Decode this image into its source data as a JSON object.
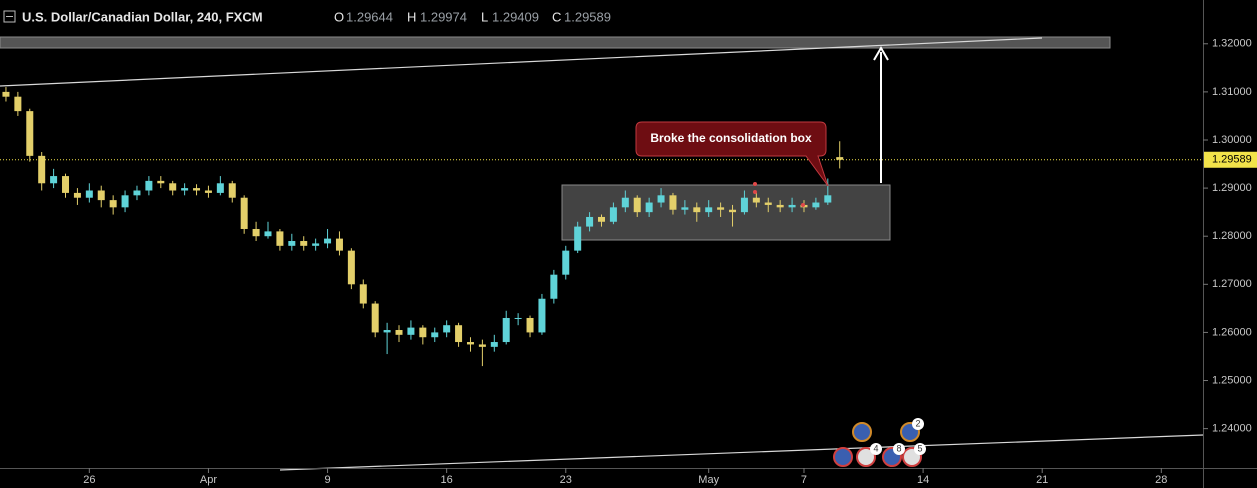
{
  "chart_data": {
    "type": "candlestick",
    "title": "U.S. Dollar/Canadian Dollar, 240, FXCM",
    "ohlc_labels": [
      "O",
      "H",
      "L",
      "C"
    ],
    "annotation": "Broke the consolidation box",
    "event_badges": [
      "2",
      "4",
      "8",
      "5"
    ],
    "up_color": "#5fd3d8",
    "down_color": "#e3cf6a",
    "last_price_color": "#f2e34a",
    "grid": false,
    "ylim": [
      1.2314,
      1.3291
    ],
    "yticks": [
      {
        "value": 1.24,
        "label": "1.24000"
      },
      {
        "value": 1.25,
        "label": "1.25000"
      },
      {
        "value": 1.26,
        "label": "1.26000"
      },
      {
        "value": 1.27,
        "label": "1.27000"
      },
      {
        "value": 1.28,
        "label": "1.28000"
      },
      {
        "value": 1.29,
        "label": "1.29000"
      },
      {
        "value": 1.3,
        "label": "1.30000"
      },
      {
        "value": 1.31,
        "label": "1.31000"
      },
      {
        "value": 1.32,
        "label": "1.32000"
      }
    ],
    "categories": [
      null,
      null,
      null,
      null,
      null,
      null,
      null,
      "26",
      null,
      null,
      null,
      null,
      null,
      null,
      null,
      null,
      null,
      "Apr",
      null,
      null,
      null,
      null,
      null,
      null,
      null,
      null,
      null,
      "9",
      null,
      null,
      null,
      null,
      null,
      null,
      null,
      null,
      null,
      "16",
      null,
      null,
      null,
      null,
      null,
      null,
      null,
      null,
      null,
      "23",
      null,
      null,
      null,
      null,
      null,
      null,
      null,
      null,
      null,
      null,
      null,
      "May",
      null,
      null,
      null,
      null,
      null,
      null,
      null,
      "7",
      null,
      null,
      null,
      null,
      null,
      null,
      null,
      null,
      null,
      "14",
      null,
      null,
      null,
      null,
      null,
      null,
      null,
      null,
      null,
      "21",
      null,
      null,
      null,
      null,
      null,
      null,
      null,
      null,
      null,
      "28",
      null,
      null,
      null
    ],
    "ohlc": [
      [
        1.31,
        1.311,
        1.308,
        1.309
      ],
      [
        1.309,
        1.31,
        1.305,
        1.306
      ],
      [
        1.306,
        1.3065,
        1.2955,
        1.2967
      ],
      [
        1.2967,
        1.2975,
        1.2895,
        1.291
      ],
      [
        1.291,
        1.294,
        1.29,
        1.2925
      ],
      [
        1.2925,
        1.293,
        1.288,
        1.289
      ],
      [
        1.289,
        1.29,
        1.2865,
        1.288
      ],
      [
        1.288,
        1.291,
        1.287,
        1.2895
      ],
      [
        1.2895,
        1.2905,
        1.286,
        1.2875
      ],
      [
        1.2875,
        1.2885,
        1.2845,
        1.286
      ],
      [
        1.286,
        1.2895,
        1.285,
        1.2885
      ],
      [
        1.2885,
        1.2905,
        1.2875,
        1.2895
      ],
      [
        1.2895,
        1.2925,
        1.2885,
        1.2915
      ],
      [
        1.2915,
        1.2925,
        1.29,
        1.291
      ],
      [
        1.291,
        1.2915,
        1.2885,
        1.2895
      ],
      [
        1.2895,
        1.291,
        1.2885,
        1.29
      ],
      [
        1.29,
        1.2908,
        1.2885,
        1.2895
      ],
      [
        1.2895,
        1.2905,
        1.288,
        1.289
      ],
      [
        1.289,
        1.2925,
        1.2885,
        1.291
      ],
      [
        1.291,
        1.2915,
        1.287,
        1.288
      ],
      [
        1.288,
        1.2885,
        1.2805,
        1.2815
      ],
      [
        1.2815,
        1.283,
        1.279,
        1.28
      ],
      [
        1.28,
        1.283,
        1.2795,
        1.281
      ],
      [
        1.281,
        1.2815,
        1.277,
        1.278
      ],
      [
        1.278,
        1.2805,
        1.277,
        1.279
      ],
      [
        1.279,
        1.28,
        1.277,
        1.278
      ],
      [
        1.278,
        1.2795,
        1.277,
        1.2785
      ],
      [
        1.2785,
        1.2815,
        1.2775,
        1.2795
      ],
      [
        1.2795,
        1.281,
        1.276,
        1.277
      ],
      [
        1.277,
        1.2775,
        1.269,
        1.27
      ],
      [
        1.27,
        1.271,
        1.265,
        1.266
      ],
      [
        1.266,
        1.2665,
        1.259,
        1.26
      ],
      [
        1.26,
        1.262,
        1.2555,
        1.2605
      ],
      [
        1.2605,
        1.2615,
        1.258,
        1.2595
      ],
      [
        1.2595,
        1.2625,
        1.2585,
        1.261
      ],
      [
        1.261,
        1.2615,
        1.2575,
        1.259
      ],
      [
        1.259,
        1.261,
        1.258,
        1.26
      ],
      [
        1.26,
        1.2625,
        1.259,
        1.2615
      ],
      [
        1.2615,
        1.262,
        1.257,
        1.258
      ],
      [
        1.258,
        1.259,
        1.256,
        1.2575
      ],
      [
        1.2575,
        1.2585,
        1.253,
        1.257
      ],
      [
        1.257,
        1.2595,
        1.256,
        1.258
      ],
      [
        1.258,
        1.2645,
        1.2575,
        1.263
      ],
      [
        1.263,
        1.264,
        1.2615,
        1.263
      ],
      [
        1.263,
        1.2635,
        1.259,
        1.26
      ],
      [
        1.26,
        1.268,
        1.2595,
        1.267
      ],
      [
        1.267,
        1.273,
        1.266,
        1.272
      ],
      [
        1.272,
        1.278,
        1.271,
        1.277
      ],
      [
        1.277,
        1.283,
        1.2765,
        1.282
      ],
      [
        1.282,
        1.285,
        1.281,
        1.284
      ],
      [
        1.284,
        1.2845,
        1.282,
        1.283
      ],
      [
        1.283,
        1.287,
        1.2825,
        1.286
      ],
      [
        1.286,
        1.2895,
        1.285,
        1.288
      ],
      [
        1.288,
        1.2885,
        1.284,
        1.285
      ],
      [
        1.285,
        1.288,
        1.284,
        1.287
      ],
      [
        1.287,
        1.29,
        1.286,
        1.2885
      ],
      [
        1.2885,
        1.289,
        1.2845,
        1.2855
      ],
      [
        1.2855,
        1.2875,
        1.2845,
        1.286
      ],
      [
        1.286,
        1.287,
        1.283,
        1.285
      ],
      [
        1.285,
        1.2875,
        1.284,
        1.286
      ],
      [
        1.286,
        1.287,
        1.284,
        1.2855
      ],
      [
        1.2855,
        1.2865,
        1.282,
        1.285
      ],
      [
        1.285,
        1.2895,
        1.2845,
        1.288
      ],
      [
        1.288,
        1.289,
        1.286,
        1.287
      ],
      [
        1.287,
        1.288,
        1.285,
        1.2865
      ],
      [
        1.2865,
        1.2875,
        1.285,
        1.286
      ],
      [
        1.286,
        1.288,
        1.285,
        1.2865
      ],
      [
        1.2865,
        1.2875,
        1.285,
        1.286
      ],
      [
        1.286,
        1.288,
        1.2855,
        1.287
      ],
      [
        1.287,
        1.292,
        1.2865,
        1.2885
      ],
      [
        1.29644,
        1.29974,
        1.29409,
        1.29589
      ],
      null,
      null,
      null,
      null,
      null,
      null,
      null,
      null,
      null,
      null,
      null,
      null,
      null,
      null,
      null,
      null,
      null,
      null,
      null,
      null,
      null,
      null,
      null,
      null,
      null,
      null,
      null,
      null,
      null,
      null
    ]
  }
}
